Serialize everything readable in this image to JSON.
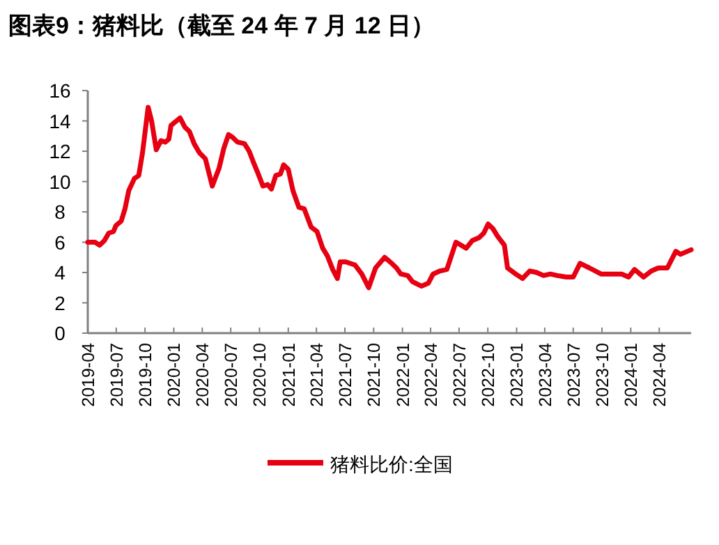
{
  "chart_data": {
    "type": "line",
    "title": "图表9：猪料比（截至 24 年 7 月 12 日）",
    "x": [
      "2019-04-01",
      "2019-04-24",
      "2019-05-09",
      "2019-05-24",
      "2019-06-07",
      "2019-06-22",
      "2019-06-30",
      "2019-07-17",
      "2019-07-29",
      "2019-08-10",
      "2019-08-28",
      "2019-09-11",
      "2019-09-23",
      "2019-10-11",
      "2019-10-22",
      "2019-11-06",
      "2019-11-21",
      "2019-12-05",
      "2019-12-16",
      "2019-12-23",
      "2020-01-21",
      "2020-02-05",
      "2020-02-20",
      "2020-03-06",
      "2020-03-23",
      "2020-04-11",
      "2020-05-03",
      "2020-05-25",
      "2020-06-09",
      "2020-06-24",
      "2020-07-08",
      "2020-07-23",
      "2020-08-14",
      "2020-08-29",
      "2020-09-13",
      "2020-09-27",
      "2020-10-12",
      "2020-10-27",
      "2020-11-08",
      "2020-11-22",
      "2020-12-07",
      "2020-12-17",
      "2021-01-01",
      "2021-01-16",
      "2021-02-04",
      "2021-02-21",
      "2021-03-15",
      "2021-04-03",
      "2021-04-21",
      "2021-05-06",
      "2021-05-23",
      "2021-06-07",
      "2021-06-16",
      "2021-07-04",
      "2021-08-02",
      "2021-08-24",
      "2021-09-15",
      "2021-10-07",
      "2021-11-05",
      "2021-11-28",
      "2021-12-13",
      "2021-12-27",
      "2022-01-18",
      "2022-02-02",
      "2022-03-03",
      "2022-03-25",
      "2022-04-09",
      "2022-05-01",
      "2022-05-23",
      "2022-06-21",
      "2022-07-24",
      "2022-08-12",
      "2022-09-03",
      "2022-09-18",
      "2022-10-02",
      "2022-10-17",
      "2022-11-01",
      "2022-11-23",
      "2022-12-03",
      "2022-12-29",
      "2023-01-20",
      "2023-02-12",
      "2023-03-06",
      "2023-03-28",
      "2023-04-19",
      "2023-05-11",
      "2023-06-09",
      "2023-07-01",
      "2023-07-23",
      "2023-08-22",
      "2023-09-28",
      "2023-10-20",
      "2023-12-03",
      "2023-12-25",
      "2024-01-13",
      "2024-02-11",
      "2024-03-07",
      "2024-03-29",
      "2024-04-27",
      "2024-05-24",
      "2024-06-08",
      "2024-07-12"
    ],
    "series": [
      {
        "name": "猪料比价:全国",
        "color": "#e60012",
        "values": [
          6.0,
          6.0,
          5.8,
          6.1,
          6.6,
          6.7,
          7.1,
          7.4,
          8.2,
          9.4,
          10.2,
          10.4,
          11.9,
          14.9,
          14.0,
          12.1,
          12.7,
          12.6,
          12.8,
          13.7,
          14.2,
          13.6,
          13.3,
          12.5,
          11.9,
          11.5,
          9.7,
          10.9,
          12.2,
          13.1,
          12.9,
          12.6,
          12.5,
          12.0,
          11.2,
          10.5,
          9.7,
          9.8,
          9.5,
          10.4,
          10.5,
          11.1,
          10.8,
          9.4,
          8.3,
          8.2,
          7.0,
          6.7,
          5.6,
          5.1,
          4.2,
          3.6,
          4.7,
          4.7,
          4.5,
          3.9,
          3.0,
          4.3,
          5.0,
          4.6,
          4.3,
          3.9,
          3.8,
          3.4,
          3.1,
          3.3,
          3.9,
          4.1,
          4.2,
          6.0,
          5.6,
          6.1,
          6.3,
          6.6,
          7.2,
          6.9,
          6.4,
          5.8,
          4.3,
          3.9,
          3.6,
          4.1,
          4.0,
          3.8,
          3.9,
          3.8,
          3.7,
          3.7,
          4.6,
          4.3,
          3.9,
          3.9,
          3.9,
          3.7,
          4.2,
          3.7,
          4.1,
          4.3,
          4.3,
          5.4,
          5.2,
          5.5
        ]
      }
    ],
    "xlim": [
      "2019-04-01",
      "2024-07-12"
    ],
    "xticks": [
      "2019-04",
      "2019-07",
      "2019-10",
      "2020-01",
      "2020-04",
      "2020-07",
      "2020-10",
      "2021-01",
      "2021-04",
      "2021-07",
      "2021-10",
      "2022-01",
      "2022-04",
      "2022-07",
      "2022-10",
      "2023-01",
      "2023-04",
      "2023-07",
      "2023-10",
      "2024-01",
      "2024-04"
    ],
    "ylim": [
      0,
      16
    ],
    "yticks": [
      0,
      2,
      4,
      6,
      8,
      10,
      12,
      14,
      16
    ],
    "legend": "bottom",
    "grid": false
  }
}
